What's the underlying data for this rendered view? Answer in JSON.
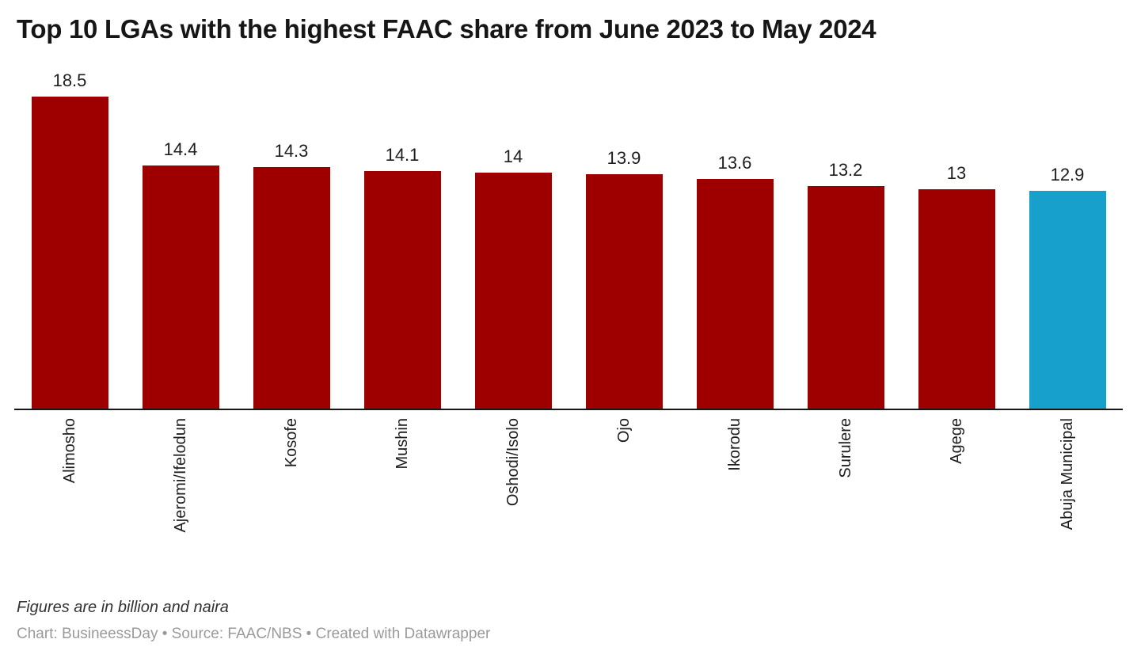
{
  "chart_data": {
    "type": "bar",
    "title": "Top 10 LGAs with the highest FAAC share from June 2023 to May 2024",
    "categories": [
      "Alimosho",
      "Ajeromi/Ifelodun",
      "Kosofe",
      "Mushin",
      "Oshodi/Isolo",
      "Ojo",
      "Ikorodu",
      "Surulere",
      "Agege",
      "Abuja Municipal"
    ],
    "values": [
      18.5,
      14.4,
      14.3,
      14.1,
      14,
      13.9,
      13.6,
      13.2,
      13,
      12.9
    ],
    "value_labels": [
      "18.5",
      "14.4",
      "14.3",
      "14.1",
      "14",
      "13.9",
      "13.6",
      "13.2",
      "13",
      "12.9"
    ],
    "xlabel": "",
    "ylabel": "",
    "ylim": [
      0,
      18.5
    ],
    "grid": false,
    "legend": false,
    "bar_color": "#9e0000",
    "highlight_color": "#18a0cc",
    "highlight_index": 9,
    "axis_color": "#161616"
  },
  "footer": {
    "note": "Figures are in billion and naira",
    "byline": "Chart: BusineessDay • Source: FAAC/NBS • Created with Datawrapper"
  }
}
